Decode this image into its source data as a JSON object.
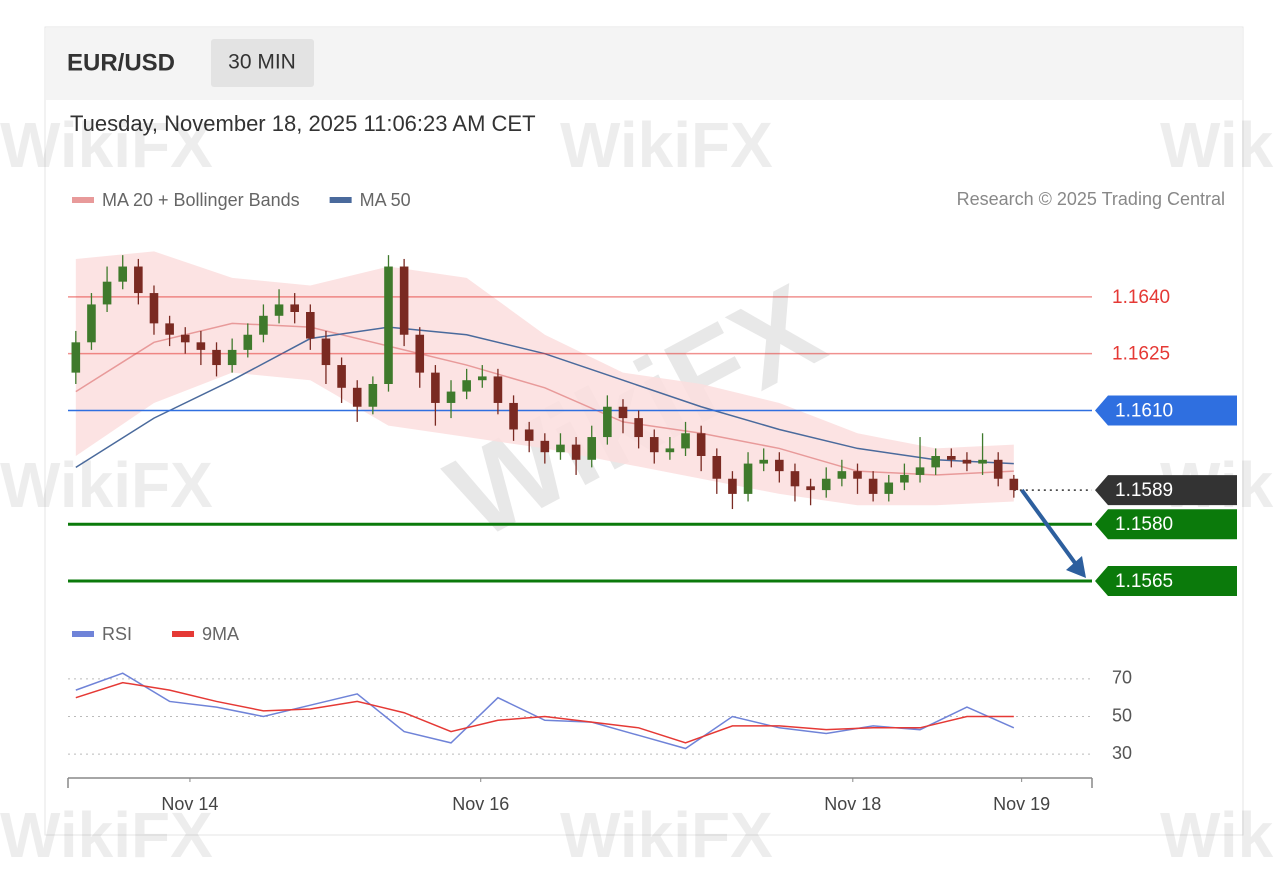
{
  "header": {
    "symbol": "EUR/USD",
    "interval": "30 MIN",
    "timestamp": "Tuesday, November 18, 2025 11:06:23 AM CET",
    "credit": "Research © 2025 Trading Central"
  },
  "watermark": "WikiFX",
  "chart_data": [
    {
      "type": "candlestick",
      "xlim": [
        -0.5,
        65
      ],
      "ylim": [
        1.156,
        1.1655
      ],
      "up_color": "#3f7a2c",
      "down_color": "#7a2a22",
      "open": [
        1.162,
        1.1628,
        1.1638,
        1.1644,
        1.1648,
        1.1641,
        1.1633,
        1.163,
        1.1628,
        1.1626,
        1.1622,
        1.1626,
        1.163,
        1.1635,
        1.1638,
        1.1636,
        1.1629,
        1.1622,
        1.1616,
        1.1611,
        1.1617,
        1.1648,
        1.163,
        1.162,
        1.1612,
        1.1615,
        1.1618,
        1.1619,
        1.1612,
        1.1605,
        1.1602,
        1.1599,
        1.1601,
        1.1597,
        1.1603,
        1.1611,
        1.1608,
        1.1603,
        1.1599,
        1.16,
        1.1604,
        1.1598,
        1.1592,
        1.1588,
        1.1596,
        1.1597,
        1.1594,
        1.159,
        1.1589,
        1.1592,
        1.1594,
        1.1592,
        1.1588,
        1.1591,
        1.1593,
        1.1595,
        1.1598,
        1.1597,
        1.1596,
        1.1597,
        1.1592
      ],
      "high": [
        1.1631,
        1.1641,
        1.1648,
        1.1651,
        1.165,
        1.1643,
        1.1635,
        1.1632,
        1.1631,
        1.1628,
        1.1629,
        1.1633,
        1.1638,
        1.1642,
        1.1641,
        1.1638,
        1.1631,
        1.1624,
        1.1618,
        1.1619,
        1.1651,
        1.165,
        1.1632,
        1.1622,
        1.1618,
        1.1621,
        1.1622,
        1.1621,
        1.1614,
        1.1607,
        1.1604,
        1.1604,
        1.1603,
        1.1606,
        1.1614,
        1.1613,
        1.161,
        1.1605,
        1.1603,
        1.1607,
        1.1606,
        1.16,
        1.1594,
        1.1599,
        1.16,
        1.1599,
        1.1596,
        1.1592,
        1.1595,
        1.1597,
        1.1596,
        1.1594,
        1.1593,
        1.1596,
        1.1603,
        1.16,
        1.16,
        1.1599,
        1.1604,
        1.1599,
        1.1593
      ],
      "low": [
        1.1617,
        1.1626,
        1.1636,
        1.1642,
        1.1638,
        1.163,
        1.1627,
        1.1625,
        1.1622,
        1.1619,
        1.162,
        1.1624,
        1.1628,
        1.1633,
        1.1633,
        1.1626,
        1.1617,
        1.1612,
        1.1607,
        1.1609,
        1.1615,
        1.1627,
        1.1616,
        1.1606,
        1.1608,
        1.1613,
        1.1616,
        1.1609,
        1.1602,
        1.1599,
        1.1596,
        1.1597,
        1.1593,
        1.1595,
        1.1601,
        1.1604,
        1.16,
        1.1596,
        1.1597,
        1.1598,
        1.1594,
        1.1588,
        1.1584,
        1.1586,
        1.1594,
        1.1591,
        1.1586,
        1.1585,
        1.1587,
        1.159,
        1.1588,
        1.1586,
        1.1586,
        1.1589,
        1.1591,
        1.1593,
        1.1595,
        1.1594,
        1.1593,
        1.159,
        1.1587
      ],
      "close": [
        1.1628,
        1.1638,
        1.1644,
        1.1648,
        1.1641,
        1.1633,
        1.163,
        1.1628,
        1.1626,
        1.1622,
        1.1626,
        1.163,
        1.1635,
        1.1638,
        1.1636,
        1.1629,
        1.1622,
        1.1616,
        1.1611,
        1.1617,
        1.1648,
        1.163,
        1.162,
        1.1612,
        1.1615,
        1.1618,
        1.1619,
        1.1612,
        1.1605,
        1.1602,
        1.1599,
        1.1601,
        1.1597,
        1.1603,
        1.1611,
        1.1608,
        1.1603,
        1.1599,
        1.16,
        1.1604,
        1.1598,
        1.1592,
        1.1588,
        1.1596,
        1.1597,
        1.1594,
        1.159,
        1.1589,
        1.1592,
        1.1594,
        1.1592,
        1.1588,
        1.1591,
        1.1593,
        1.1595,
        1.1598,
        1.1597,
        1.1596,
        1.1597,
        1.1592,
        1.1589
      ],
      "overlays": [
        {
          "name": "MA 20 + Bollinger Bands",
          "color": "#e89a9a",
          "band_color": "#fbdede",
          "x": [
            0,
            5,
            10,
            15,
            20,
            25,
            30,
            35,
            40,
            45,
            50,
            55,
            60
          ],
          "values": [
            1.1615,
            1.1628,
            1.1633,
            1.1632,
            1.1627,
            1.1622,
            1.1616,
            1.1607,
            1.1604,
            1.16,
            1.1594,
            1.1593,
            1.1594
          ],
          "upper": [
            1.165,
            1.1652,
            1.1645,
            1.1643,
            1.1648,
            1.1645,
            1.163,
            1.162,
            1.1617,
            1.1612,
            1.1604,
            1.16,
            1.1601
          ],
          "lower": [
            1.1598,
            1.1612,
            1.162,
            1.1618,
            1.1606,
            1.1603,
            1.16,
            1.1596,
            1.1592,
            1.1588,
            1.1585,
            1.1585,
            1.1586
          ]
        },
        {
          "name": "MA 50",
          "color": "#4a6a9c",
          "x": [
            0,
            5,
            10,
            15,
            20,
            25,
            30,
            35,
            40,
            45,
            50,
            55,
            60
          ],
          "values": [
            1.1595,
            1.1608,
            1.1618,
            1.1629,
            1.1632,
            1.163,
            1.1625,
            1.1618,
            1.1611,
            1.1605,
            1.16,
            1.1597,
            1.1596
          ]
        }
      ],
      "levels": [
        {
          "value": 1.164,
          "label": "1.1640",
          "color": "#e53935",
          "line_style": "thin",
          "box": false
        },
        {
          "value": 1.1625,
          "label": "1.1625",
          "color": "#e53935",
          "line_style": "thin",
          "box": false
        },
        {
          "value": 1.161,
          "label": "1.1610",
          "color": "#2f6fe0",
          "line_style": "thin",
          "box": true
        },
        {
          "value": 1.1589,
          "label": "1.1589",
          "color": "#333333",
          "line_style": "dotted",
          "box": true
        },
        {
          "value": 1.158,
          "label": "1.1580",
          "color": "#0b7a0b",
          "line_style": "thick",
          "box": true
        },
        {
          "value": 1.1565,
          "label": "1.1565",
          "color": "#0b7a0b",
          "line_style": "thick",
          "box": true
        }
      ],
      "arrow_color": "#2d5f9e"
    },
    {
      "type": "line",
      "xlim": [
        -0.5,
        65
      ],
      "ylim": [
        20,
        80
      ],
      "yticks": [
        30,
        50,
        70
      ],
      "grid": true,
      "xticks": [
        {
          "value": 7.3,
          "label": "Nov 14"
        },
        {
          "value": 25.9,
          "label": "Nov 16"
        },
        {
          "value": 49.7,
          "label": "Nov 18"
        },
        {
          "value": 60.5,
          "label": "Nov 19"
        }
      ],
      "series": [
        {
          "name": "RSI",
          "color": "#6f83d8",
          "x": [
            0,
            3,
            6,
            9,
            12,
            15,
            18,
            21,
            24,
            27,
            30,
            33,
            36,
            39,
            42,
            45,
            48,
            51,
            54,
            57,
            60
          ],
          "values": [
            64,
            73,
            58,
            55,
            50,
            56,
            62,
            42,
            36,
            60,
            48,
            47,
            40,
            33,
            50,
            44,
            41,
            45,
            43,
            55,
            44
          ]
        },
        {
          "name": "9MA",
          "color": "#e53935",
          "x": [
            0,
            3,
            6,
            9,
            12,
            15,
            18,
            21,
            24,
            27,
            30,
            33,
            36,
            39,
            42,
            45,
            48,
            51,
            54,
            57,
            60
          ],
          "values": [
            60,
            68,
            64,
            58,
            53,
            54,
            58,
            52,
            42,
            48,
            50,
            47,
            44,
            36,
            45,
            45,
            43,
            44,
            44,
            50,
            50
          ]
        }
      ]
    }
  ]
}
